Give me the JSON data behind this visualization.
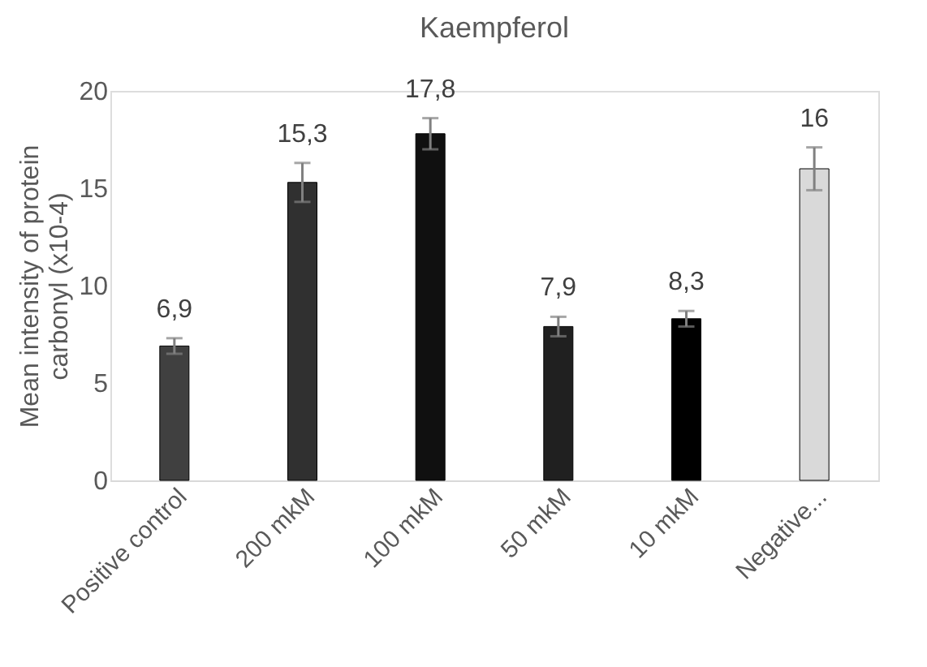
{
  "chart_data": {
    "type": "bar",
    "title": "Kaempferol",
    "ylabel": "Mean intensity of protein\ncarbonyl (x10-4)",
    "categories": [
      "Positive control",
      "200 mkM",
      "100 mkM",
      "50 mkM",
      "10 mkM",
      "Negative..."
    ],
    "values": [
      6.9,
      15.3,
      17.8,
      7.9,
      8.3,
      16
    ],
    "value_labels": [
      "6,9",
      "15,3",
      "17,8",
      "7,9",
      "8,3",
      "16"
    ],
    "errors": [
      0.4,
      1.0,
      0.8,
      0.5,
      0.4,
      1.1
    ],
    "colors": [
      "#404040",
      "#303030",
      "#101010",
      "#202020",
      "#000000",
      "#d9d9d9"
    ],
    "ylim": [
      0,
      20
    ],
    "yticks": [
      0,
      5,
      10,
      15,
      20
    ],
    "grid": false
  }
}
